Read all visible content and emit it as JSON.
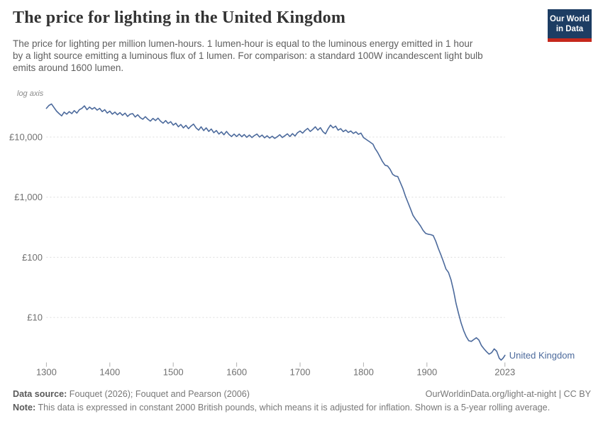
{
  "header": {
    "title": "The price for lighting in the United Kingdom",
    "subtitle_lines": [
      "The price for lighting per million lumen-hours. 1 lumen-hour is equal to the luminous energy emitted in 1 hour",
      "by a light source emitting a luminous flux of 1 lumen. For comparison: a standard 100W incandescent light bulb",
      "emits around 1600 lumen."
    ],
    "logo": {
      "line1": "Our World",
      "line2": "in Data",
      "bg_color": "#1d3d63",
      "accent_color": "#c5281c"
    }
  },
  "chart_data": {
    "type": "line",
    "title": "The price for lighting in the United Kingdom",
    "axis_note": "log axis",
    "y_scale": "log",
    "grid": "horizontal-dashed",
    "x_range": [
      1300,
      2023
    ],
    "y_ticks": [
      {
        "value": 10000,
        "label": "£10,000"
      },
      {
        "value": 1000,
        "label": "£1,000"
      },
      {
        "value": 100,
        "label": "£100"
      },
      {
        "value": 10,
        "label": "£10"
      }
    ],
    "x_ticks": [
      {
        "value": 1300,
        "label": "1300"
      },
      {
        "value": 1400,
        "label": "1400"
      },
      {
        "value": 1500,
        "label": "1500"
      },
      {
        "value": 1600,
        "label": "1600"
      },
      {
        "value": 1700,
        "label": "1700"
      },
      {
        "value": 1800,
        "label": "1800"
      },
      {
        "value": 1900,
        "label": "1900"
      },
      {
        "value": 2023,
        "label": "2023"
      }
    ],
    "series": [
      {
        "name": "United Kingdom",
        "color": "#4c6a9c",
        "unit": "British pounds (2000 prices) per million lumen-hours",
        "points": [
          [
            1300,
            30000
          ],
          [
            1304,
            33500
          ],
          [
            1308,
            35500
          ],
          [
            1312,
            31000
          ],
          [
            1316,
            27000
          ],
          [
            1320,
            24500
          ],
          [
            1324,
            22500
          ],
          [
            1328,
            26000
          ],
          [
            1332,
            24000
          ],
          [
            1336,
            26500
          ],
          [
            1340,
            24500
          ],
          [
            1344,
            27500
          ],
          [
            1348,
            25000
          ],
          [
            1352,
            28500
          ],
          [
            1356,
            30000
          ],
          [
            1360,
            33000
          ],
          [
            1364,
            28500
          ],
          [
            1368,
            31500
          ],
          [
            1372,
            29000
          ],
          [
            1376,
            31000
          ],
          [
            1380,
            28000
          ],
          [
            1384,
            30000
          ],
          [
            1388,
            26500
          ],
          [
            1392,
            28500
          ],
          [
            1396,
            25000
          ],
          [
            1400,
            27000
          ],
          [
            1404,
            24000
          ],
          [
            1408,
            26000
          ],
          [
            1412,
            23500
          ],
          [
            1416,
            25500
          ],
          [
            1420,
            23000
          ],
          [
            1424,
            25000
          ],
          [
            1428,
            22000
          ],
          [
            1432,
            24000
          ],
          [
            1436,
            24500
          ],
          [
            1440,
            21500
          ],
          [
            1444,
            23500
          ],
          [
            1448,
            21000
          ],
          [
            1452,
            19800
          ],
          [
            1456,
            21800
          ],
          [
            1460,
            19800
          ],
          [
            1464,
            18400
          ],
          [
            1468,
            20400
          ],
          [
            1472,
            18800
          ],
          [
            1476,
            20600
          ],
          [
            1480,
            18400
          ],
          [
            1484,
            17000
          ],
          [
            1488,
            18800
          ],
          [
            1492,
            16800
          ],
          [
            1496,
            18000
          ],
          [
            1500,
            15800
          ],
          [
            1504,
            17000
          ],
          [
            1508,
            14800
          ],
          [
            1512,
            16200
          ],
          [
            1516,
            14200
          ],
          [
            1520,
            15600
          ],
          [
            1524,
            13800
          ],
          [
            1528,
            15200
          ],
          [
            1532,
            16400
          ],
          [
            1536,
            14200
          ],
          [
            1540,
            13000
          ],
          [
            1544,
            14800
          ],
          [
            1548,
            12800
          ],
          [
            1552,
            14200
          ],
          [
            1556,
            12400
          ],
          [
            1560,
            13600
          ],
          [
            1564,
            11800
          ],
          [
            1568,
            12800
          ],
          [
            1572,
            11200
          ],
          [
            1576,
            12200
          ],
          [
            1580,
            10900
          ],
          [
            1584,
            12400
          ],
          [
            1588,
            11000
          ],
          [
            1592,
            10200
          ],
          [
            1596,
            11200
          ],
          [
            1600,
            10200
          ],
          [
            1604,
            11200
          ],
          [
            1608,
            10100
          ],
          [
            1612,
            11000
          ],
          [
            1616,
            9900
          ],
          [
            1620,
            10800
          ],
          [
            1624,
            9800
          ],
          [
            1628,
            10600
          ],
          [
            1632,
            11200
          ],
          [
            1636,
            10000
          ],
          [
            1640,
            10800
          ],
          [
            1644,
            9700
          ],
          [
            1648,
            10500
          ],
          [
            1652,
            9600
          ],
          [
            1656,
            10300
          ],
          [
            1660,
            9500
          ],
          [
            1664,
            10100
          ],
          [
            1668,
            10900
          ],
          [
            1672,
            9800
          ],
          [
            1676,
            10500
          ],
          [
            1680,
            11300
          ],
          [
            1684,
            10200
          ],
          [
            1688,
            11400
          ],
          [
            1692,
            10400
          ],
          [
            1696,
            11800
          ],
          [
            1700,
            12600
          ],
          [
            1704,
            11600
          ],
          [
            1708,
            12900
          ],
          [
            1712,
            13900
          ],
          [
            1716,
            12400
          ],
          [
            1720,
            13400
          ],
          [
            1724,
            14800
          ],
          [
            1728,
            13000
          ],
          [
            1732,
            14300
          ],
          [
            1736,
            12300
          ],
          [
            1740,
            11300
          ],
          [
            1744,
            13600
          ],
          [
            1748,
            15800
          ],
          [
            1752,
            14200
          ],
          [
            1756,
            15200
          ],
          [
            1760,
            13000
          ],
          [
            1764,
            13800
          ],
          [
            1768,
            12300
          ],
          [
            1772,
            13100
          ],
          [
            1776,
            11900
          ],
          [
            1780,
            12600
          ],
          [
            1784,
            11500
          ],
          [
            1788,
            12200
          ],
          [
            1792,
            11100
          ],
          [
            1796,
            11600
          ],
          [
            1800,
            9800
          ],
          [
            1805,
            9000
          ],
          [
            1810,
            8300
          ],
          [
            1815,
            7600
          ],
          [
            1818,
            6500
          ],
          [
            1822,
            5600
          ],
          [
            1826,
            4700
          ],
          [
            1830,
            3900
          ],
          [
            1834,
            3400
          ],
          [
            1838,
            3300
          ],
          [
            1842,
            2900
          ],
          [
            1846,
            2400
          ],
          [
            1850,
            2250
          ],
          [
            1854,
            2200
          ],
          [
            1858,
            1750
          ],
          [
            1862,
            1400
          ],
          [
            1866,
            1050
          ],
          [
            1870,
            820
          ],
          [
            1874,
            640
          ],
          [
            1878,
            500
          ],
          [
            1882,
            430
          ],
          [
            1886,
            380
          ],
          [
            1890,
            330
          ],
          [
            1894,
            280
          ],
          [
            1898,
            250
          ],
          [
            1902,
            242
          ],
          [
            1906,
            238
          ],
          [
            1910,
            230
          ],
          [
            1914,
            185
          ],
          [
            1918,
            140
          ],
          [
            1922,
            110
          ],
          [
            1926,
            85
          ],
          [
            1930,
            64
          ],
          [
            1934,
            56
          ],
          [
            1938,
            42
          ],
          [
            1942,
            28
          ],
          [
            1946,
            17
          ],
          [
            1950,
            11.5
          ],
          [
            1954,
            8
          ],
          [
            1958,
            6
          ],
          [
            1962,
            4.8
          ],
          [
            1966,
            4.1
          ],
          [
            1970,
            4.0
          ],
          [
            1974,
            4.3
          ],
          [
            1978,
            4.6
          ],
          [
            1982,
            4.2
          ],
          [
            1986,
            3.4
          ],
          [
            1990,
            3.0
          ],
          [
            1994,
            2.7
          ],
          [
            1998,
            2.45
          ],
          [
            2002,
            2.6
          ],
          [
            2006,
            3.0
          ],
          [
            2010,
            2.75
          ],
          [
            2014,
            2.1
          ],
          [
            2017,
            1.95
          ],
          [
            2020,
            2.1
          ],
          [
            2023,
            2.35
          ]
        ]
      }
    ]
  },
  "footer": {
    "data_source_label": "Data source:",
    "data_source_text": " Fouquet (2026); Fouquet and Pearson (2006)",
    "origin": "OurWorldinData.org/light-at-night | CC BY",
    "note_label": "Note:",
    "note_text": " This data is expressed in constant 2000 British pounds, which means it is adjusted for inflation. Shown is a 5-year rolling average."
  }
}
